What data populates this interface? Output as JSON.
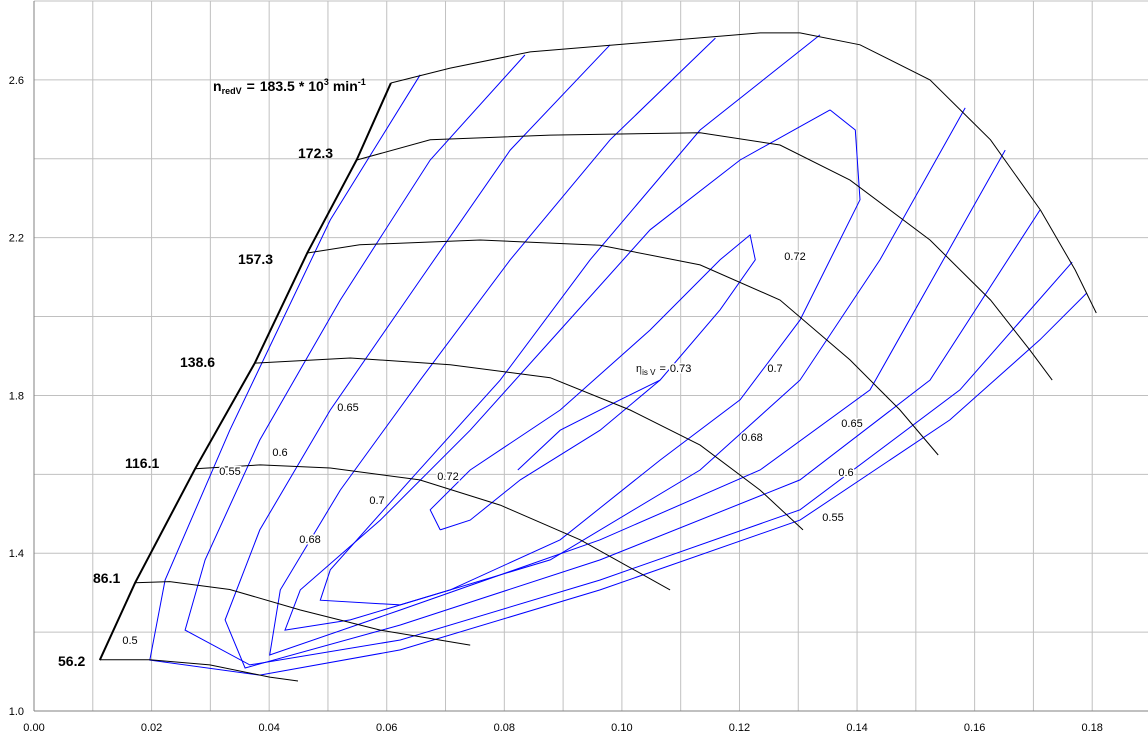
{
  "chart_data": {
    "type": "line",
    "xlim": [
      0,
      0.19
    ],
    "ylim": [
      1.0,
      2.8
    ],
    "xticks": [
      {
        "value": 0,
        "label": "0.00"
      },
      {
        "value": 0.02,
        "label": "0.02"
      },
      {
        "value": 0.04,
        "label": "0.04"
      },
      {
        "value": 0.06,
        "label": "0.06"
      },
      {
        "value": 0.08,
        "label": "0.08"
      },
      {
        "value": 0.1,
        "label": "0.10"
      },
      {
        "value": 0.12,
        "label": "0.12"
      },
      {
        "value": 0.14,
        "label": "0.14"
      },
      {
        "value": 0.16,
        "label": "0.16"
      },
      {
        "value": 0.18,
        "label": "0.18"
      }
    ],
    "x_minor_grid": [
      0.01,
      0.03,
      0.05,
      0.07,
      0.09,
      0.11,
      0.13,
      0.15,
      0.17,
      0.19
    ],
    "yticks": [
      {
        "value": 1.0,
        "label": "1.0"
      },
      {
        "value": 1.4,
        "label": "1.4"
      },
      {
        "value": 1.8,
        "label": "1.8"
      },
      {
        "value": 2.2,
        "label": "2.2"
      },
      {
        "value": 2.6,
        "label": "2.6"
      }
    ],
    "y_minor_grid": [
      1.2,
      1.6,
      2.0,
      2.4,
      2.8
    ],
    "grid": true,
    "grid_color": "#c0c0c0",
    "speed_label": {
      "symbol": "n",
      "subscript": "redV",
      "equals": "=",
      "times": "*",
      "base": "10",
      "exponent": "3",
      "unit": "min",
      "unit_exponent": "-1"
    },
    "efficiency_label": {
      "symbol": "η",
      "subscript": "is V",
      "equals": "="
    },
    "surge_line": {
      "color": "#000000",
      "x": [
        0.0112,
        0.0172,
        0.0274,
        0.0376,
        0.0465,
        0.0549,
        0.0607
      ],
      "y": [
        1.129,
        1.325,
        1.614,
        1.883,
        2.162,
        2.398,
        2.592
      ]
    },
    "speed_lines": [
      {
        "speed": 56.2,
        "color": "#000000",
        "x": [
          0.0112,
          0.0197,
          0.0299,
          0.0401,
          0.0449
        ],
        "y": [
          1.13,
          1.13,
          1.117,
          1.086,
          1.076
        ]
      },
      {
        "speed": 86.1,
        "color": "#000000",
        "x": [
          0.0172,
          0.0231,
          0.0333,
          0.0453,
          0.0589,
          0.0742
        ],
        "y": [
          1.325,
          1.328,
          1.308,
          1.256,
          1.205,
          1.167
        ]
      },
      {
        "speed": 116.1,
        "color": "#000000",
        "x": [
          0.0274,
          0.0385,
          0.0504,
          0.0656,
          0.0793,
          0.0929,
          0.1082
        ],
        "y": [
          1.614,
          1.624,
          1.616,
          1.586,
          1.522,
          1.434,
          1.307
        ]
      },
      {
        "speed": 138.6,
        "color": "#000000",
        "x": [
          0.0376,
          0.0538,
          0.0708,
          0.0878,
          0.1014,
          0.1133,
          0.1235,
          0.1308
        ],
        "y": [
          1.882,
          1.895,
          1.878,
          1.845,
          1.763,
          1.674,
          1.56,
          1.459
        ]
      },
      {
        "speed": 157.3,
        "color": "#000000",
        "x": [
          0.0465,
          0.0554,
          0.0759,
          0.0963,
          0.1133,
          0.1269,
          0.1388,
          0.1473,
          0.1538
        ],
        "y": [
          2.161,
          2.182,
          2.194,
          2.181,
          2.131,
          2.042,
          1.89,
          1.763,
          1.649
        ]
      },
      {
        "speed": 172.3,
        "color": "#000000",
        "x": [
          0.0549,
          0.0674,
          0.0878,
          0.1133,
          0.1269,
          0.1388,
          0.1524,
          0.1627,
          0.1694,
          0.1732
        ],
        "y": [
          2.397,
          2.448,
          2.46,
          2.466,
          2.435,
          2.346,
          2.194,
          2.042,
          1.915,
          1.839
        ]
      },
      {
        "speed": 183.5,
        "color": "#000000",
        "x": [
          0.0607,
          0.0708,
          0.0844,
          0.1048,
          0.1235,
          0.1303,
          0.1405,
          0.1524,
          0.1627,
          0.1712,
          0.1771,
          0.1807
        ],
        "y": [
          2.592,
          2.63,
          2.671,
          2.696,
          2.719,
          2.719,
          2.689,
          2.6,
          2.448,
          2.27,
          2.118,
          2.009
        ]
      }
    ],
    "efficiency_contours": [
      {
        "efficiency": 0.5,
        "color": "#0000ff",
        "x": [
          0.0657,
          0.0504,
          0.0333,
          0.0223,
          0.0197,
          0.0384,
          0.0623,
          0.0963,
          0.1303,
          0.1558,
          0.1711,
          0.1791
        ],
        "y": [
          2.613,
          2.245,
          1.712,
          1.332,
          1.129,
          1.091,
          1.155,
          1.307,
          1.484,
          1.738,
          1.941,
          2.06
        ]
      },
      {
        "efficiency": 0.55,
        "color": "#0000ff",
        "x": [
          0.0835,
          0.0674,
          0.0521,
          0.0384,
          0.0291,
          0.0257,
          0.0367,
          0.0623,
          0.0963,
          0.1303,
          0.1575,
          0.1766
        ],
        "y": [
          2.663,
          2.397,
          2.042,
          1.687,
          1.383,
          1.205,
          1.117,
          1.18,
          1.332,
          1.51,
          1.814,
          2.138
        ]
      },
      {
        "efficiency": 0.6,
        "color": "#0000ff",
        "x": [
          0.098,
          0.081,
          0.0657,
          0.0504,
          0.0384,
          0.0325,
          0.0359,
          0.0623,
          0.0963,
          0.1303,
          0.1524,
          0.1711
        ],
        "y": [
          2.689,
          2.422,
          2.093,
          1.763,
          1.459,
          1.231,
          1.109,
          1.218,
          1.383,
          1.586,
          1.839,
          2.27
        ]
      },
      {
        "efficiency": 0.65,
        "color": "#0000ff",
        "x": [
          0.1159,
          0.098,
          0.081,
          0.0657,
          0.0521,
          0.0419,
          0.0401,
          0.0623,
          0.0963,
          0.1235,
          0.1422,
          0.1652
        ],
        "y": [
          2.706,
          2.448,
          2.144,
          1.839,
          1.56,
          1.307,
          1.142,
          1.256,
          1.434,
          1.611,
          1.814,
          2.422
        ]
      },
      {
        "efficiency": 0.68,
        "color": "#0000ff",
        "x": [
          0.1337,
          0.1133,
          0.0946,
          0.0793,
          0.064,
          0.0504,
          0.0487,
          0.0623,
          0.0878,
          0.1133,
          0.1303,
          0.1439,
          0.1584
        ],
        "y": [
          2.714,
          2.473,
          2.144,
          1.839,
          1.586,
          1.358,
          1.281,
          1.269,
          1.383,
          1.611,
          1.839,
          2.144,
          2.529
        ]
      },
      {
        "efficiency": 0.7,
        "color": "#0000ff",
        "x": [
          0.1354,
          0.1201,
          0.1048,
          0.0895,
          0.0742,
          0.0589,
          0.0453,
          0.0427,
          0.0538,
          0.0708,
          0.0895,
          0.1065,
          0.1201,
          0.1303,
          0.1405,
          0.1397,
          0.1354
        ],
        "y": [
          2.524,
          2.397,
          2.22,
          1.966,
          1.712,
          1.484,
          1.307,
          1.205,
          1.231,
          1.307,
          1.434,
          1.636,
          1.789,
          1.991,
          2.296,
          2.473,
          2.524
        ]
      },
      {
        "efficiency": 0.72,
        "color": "#0000ff",
        "x": [
          0.0691,
          0.0674,
          0.0742,
          0.0895,
          0.1048,
          0.1167,
          0.1218,
          0.1227,
          0.1167,
          0.1065,
          0.0963,
          0.0827,
          0.0742,
          0.0691
        ],
        "y": [
          1.459,
          1.51,
          1.611,
          1.763,
          1.966,
          2.144,
          2.207,
          2.144,
          2.017,
          1.839,
          1.712,
          1.586,
          1.484,
          1.459
        ]
      },
      {
        "efficiency": 0.73,
        "color": "#0000ff",
        "x": [
          0.0823,
          0.0895,
          0.0997,
          0.1065
        ],
        "y": [
          1.611,
          1.712,
          1.789,
          1.839
        ]
      }
    ]
  }
}
